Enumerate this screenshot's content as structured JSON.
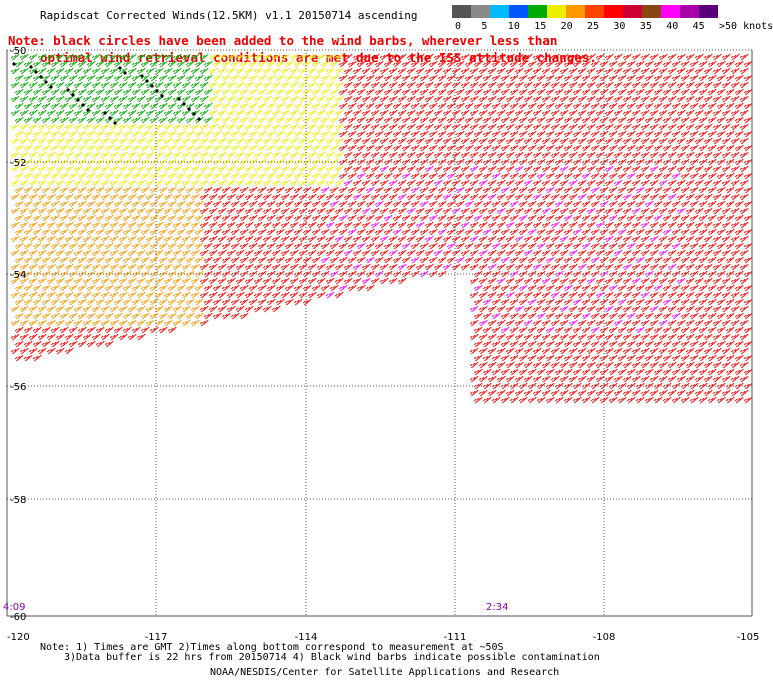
{
  "title": "Rapidscat Corrected Winds(12.5KM) v1.1 20150714 ascending",
  "note_line1": "Note: black circles have been added to the wind barbs, wherever less than",
  "note_line2": "optimal wind retrieval conditions are met due to the ISS attitude changes.",
  "legend": {
    "colors": [
      "#555555",
      "#8a8a8a",
      "#00bbff",
      "#0055ff",
      "#00aa00",
      "#eeee00",
      "#ff9900",
      "#ff4400",
      "#ff0000",
      "#cc0033",
      "#8b4513",
      "#ff00ff",
      "#aa00aa",
      "#5a007a"
    ],
    "labels": [
      "0",
      "5",
      "10",
      "15",
      "20",
      "25",
      "30",
      "35",
      "40",
      "45",
      ">50 knots"
    ]
  },
  "map": {
    "lon_labels": [
      "-120",
      "-117",
      "-114",
      "-111",
      "-108",
      "-105"
    ],
    "lat_labels": [
      "-50",
      "-52",
      "-54",
      "-56",
      "-58",
      "-60"
    ],
    "time_labels": [
      "4:09",
      "2:34"
    ],
    "time_color": "#8800aa",
    "grid_color": "#555555"
  },
  "footer": {
    "line1": "Note: 1) Times are GMT 2)Times along bottom correspond to measurement at ~50S",
    "line2": "3)Data buffer is 22 hrs from 20150714 4) Black wind barbs indicate possible contamination",
    "line3": "NOAA/NESDIS/Center for Satellite Applications and Research"
  }
}
